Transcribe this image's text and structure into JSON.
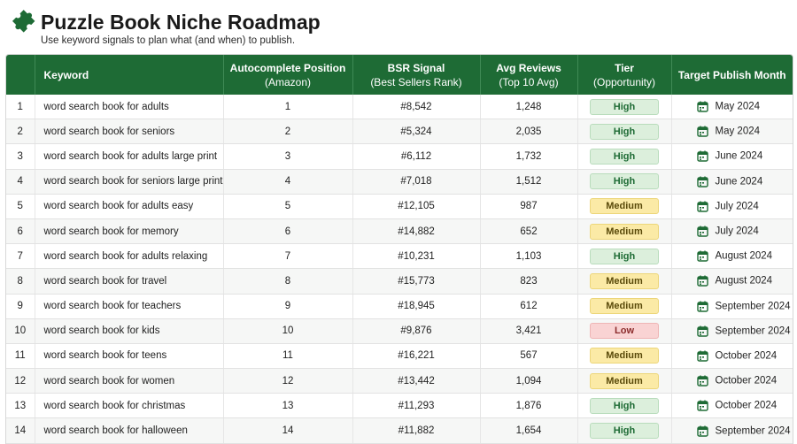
{
  "header": {
    "title": "Puzzle Book Niche Roadmap",
    "subtitle": "Use keyword signals to plan what (and when) to publish.",
    "logo_icon": "puzzle-piece-icon",
    "brand_color": "#1e6b35"
  },
  "table": {
    "columns": {
      "index": "",
      "keyword": "Keyword",
      "autocomplete": "Autocomplete Position",
      "autocomplete_sub": "(Amazon)",
      "bsr": "BSR Signal",
      "bsr_sub": "(Best Sellers Rank)",
      "reviews": "Avg Reviews",
      "reviews_sub": "(Top 10 Avg)",
      "tier": "Tier",
      "tier_sub": "(Opportunity)",
      "month": "Target Publish Month"
    },
    "rows": [
      {
        "index": "1",
        "keyword": "word search book for adults",
        "position": "1",
        "bsr": "#8,542",
        "reviews": "1,248",
        "tier": "High",
        "month": "May 2024"
      },
      {
        "index": "2",
        "keyword": "word search book for seniors",
        "position": "2",
        "bsr": "#5,324",
        "reviews": "2,035",
        "tier": "High",
        "month": "May 2024"
      },
      {
        "index": "3",
        "keyword": "word search book for adults large print",
        "position": "3",
        "bsr": "#6,112",
        "reviews": "1,732",
        "tier": "High",
        "month": "June 2024"
      },
      {
        "index": "4",
        "keyword": "word search book for seniors large print",
        "position": "4",
        "bsr": "#7,018",
        "reviews": "1,512",
        "tier": "High",
        "month": "June 2024"
      },
      {
        "index": "5",
        "keyword": "word search book for adults easy",
        "position": "5",
        "bsr": "#12,105",
        "reviews": "987",
        "tier": "Medium",
        "month": "July 2024"
      },
      {
        "index": "6",
        "keyword": "word search book for memory",
        "position": "6",
        "bsr": "#14,882",
        "reviews": "652",
        "tier": "Medium",
        "month": "July 2024"
      },
      {
        "index": "7",
        "keyword": "word search book for adults relaxing",
        "position": "7",
        "bsr": "#10,231",
        "reviews": "1,103",
        "tier": "High",
        "month": "August 2024"
      },
      {
        "index": "8",
        "keyword": "word search book for travel",
        "position": "8",
        "bsr": "#15,773",
        "reviews": "823",
        "tier": "Medium",
        "month": "August 2024"
      },
      {
        "index": "9",
        "keyword": "word search book for teachers",
        "position": "9",
        "bsr": "#18,945",
        "reviews": "612",
        "tier": "Medium",
        "month": "September 2024"
      },
      {
        "index": "10",
        "keyword": "word search book for kids",
        "position": "10",
        "bsr": "#9,876",
        "reviews": "3,421",
        "tier": "Low",
        "month": "September 2024"
      },
      {
        "index": "11",
        "keyword": "word search book for teens",
        "position": "11",
        "bsr": "#16,221",
        "reviews": "567",
        "tier": "Medium",
        "month": "October 2024"
      },
      {
        "index": "12",
        "keyword": "word search book for women",
        "position": "12",
        "bsr": "#13,442",
        "reviews": "1,094",
        "tier": "Medium",
        "month": "October 2024"
      },
      {
        "index": "13",
        "keyword": "word search book for christmas",
        "position": "13",
        "bsr": "#11,293",
        "reviews": "1,876",
        "tier": "High",
        "month": "October 2024"
      },
      {
        "index": "14",
        "keyword": "word search book for halloween",
        "position": "14",
        "bsr": "#11,882",
        "reviews": "1,654",
        "tier": "High",
        "month": "September 2024"
      }
    ]
  },
  "colors": {
    "high": "#dcefdc",
    "medium": "#fbeaa6",
    "low": "#f9d3d3"
  }
}
